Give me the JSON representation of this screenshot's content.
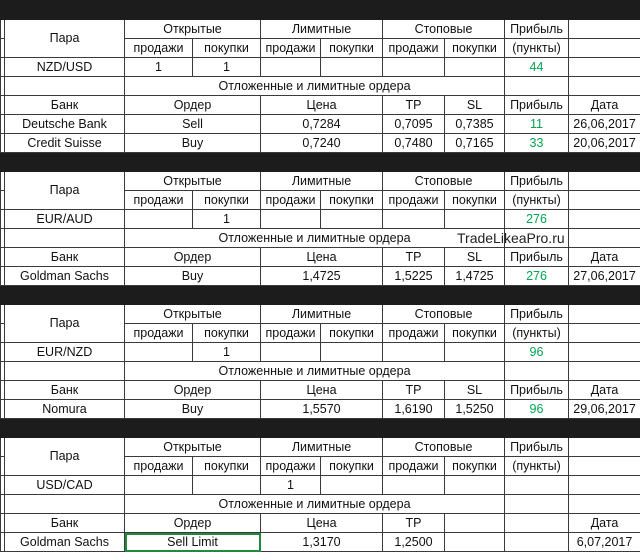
{
  "watermark": "TradeLikeaPro.ru",
  "blocks": [
    {
      "header": {
        "pair": "Пара",
        "open": "Открытые",
        "limit": "Лимитные",
        "stop": "Стоповые",
        "profit": "Прибыль"
      },
      "subheader": {
        "open_sell": "продажи",
        "open_buy": "покупки",
        "limit_sell": "продажи",
        "limit_buy": "покупки",
        "stop_sell": "продажи",
        "stop_buy": "покупки",
        "profit": "(пункты)"
      },
      "position": {
        "pair": "NZD/USD",
        "open_sell": 1,
        "open_buy": 1,
        "profit": 44
      },
      "section_title": "Отложенные и лимитные ордера",
      "orders_header": {
        "bank": "Банк",
        "order": "Ордер",
        "price": "Цена",
        "tp": "TP",
        "sl": "SL",
        "profit": "Прибыль",
        "date": "Дата"
      },
      "orders": [
        {
          "bank": "Deutsche Bank",
          "order": "Sell",
          "price": "0,7284",
          "tp": "0,7095",
          "sl": "0,7385",
          "profit": 11,
          "date": "26,06,2017"
        },
        {
          "bank": "Credit Suisse",
          "order": "Buy",
          "price": "0,7240",
          "tp": "0,7480",
          "sl": "0,7165",
          "profit": 33,
          "date": "20,06,2017"
        }
      ]
    },
    {
      "header": {
        "pair": "Пара",
        "open": "Открытые",
        "limit": "Лимитные",
        "stop": "Стоповые",
        "profit": "Прибыль"
      },
      "subheader": {
        "open_sell": "продажи",
        "open_buy": "покупки",
        "limit_sell": "продажи",
        "limit_buy": "покупки",
        "stop_sell": "продажи",
        "stop_buy": "покупки",
        "profit": "(пункты)"
      },
      "position": {
        "pair": "EUR/AUD",
        "open_buy": 1,
        "profit": 276
      },
      "section_title": "Отложенные и лимитные ордера",
      "orders_header": {
        "bank": "Банк",
        "order": "Ордер",
        "price": "Цена",
        "tp": "TP",
        "sl": "SL",
        "profit": "Прибыль",
        "date": "Дата"
      },
      "orders": [
        {
          "bank": "Goldman Sachs",
          "order": "Buy",
          "price": "1,4725",
          "tp": "1,5225",
          "sl": "1,4725",
          "profit": 276,
          "date": "27,06,2017"
        }
      ]
    },
    {
      "header": {
        "pair": "Пара",
        "open": "Открытые",
        "limit": "Лимитные",
        "stop": "Стоповые",
        "profit": "Прибыль"
      },
      "subheader": {
        "open_sell": "продажи",
        "open_buy": "покупки",
        "limit_sell": "продажи",
        "limit_buy": "покупки",
        "stop_sell": "продажи",
        "stop_buy": "покупки",
        "profit": "(пункты)"
      },
      "position": {
        "pair": "EUR/NZD",
        "open_buy": 1,
        "profit": 96
      },
      "section_title": "Отложенные и лимитные ордера",
      "orders_header": {
        "bank": "Банк",
        "order": "Ордер",
        "price": "Цена",
        "tp": "TP",
        "sl": "SL",
        "profit": "Прибыль",
        "date": "Дата"
      },
      "orders": [
        {
          "bank": "Nomura",
          "order": "Buy",
          "price": "1,5570",
          "tp": "1,6190",
          "sl": "1,5250",
          "profit": 96,
          "date": "29,06,2017"
        }
      ]
    },
    {
      "header": {
        "pair": "Пара",
        "open": "Открытые",
        "limit": "Лимитные",
        "stop": "Стоповые",
        "profit": "Прибыль"
      },
      "subheader": {
        "open_sell": "продажи",
        "open_buy": "покупки",
        "limit_sell": "продажи",
        "limit_buy": "покупки",
        "stop_sell": "продажи",
        "stop_buy": "покупки",
        "profit": "(пункты)"
      },
      "position": {
        "pair": "USD/CAD",
        "limit_sell": 1
      },
      "section_title": "Отложенные и лимитные ордера",
      "orders_header": {
        "bank": "Банк",
        "order": "Ордер",
        "price": "Цена",
        "tp": "TP",
        "date": "Дата"
      },
      "orders": [
        {
          "bank": "Goldman Sachs",
          "order": "Sell Limit",
          "price": "1,3170",
          "tp": "1,2500",
          "date": "6,07,2017"
        }
      ]
    }
  ]
}
